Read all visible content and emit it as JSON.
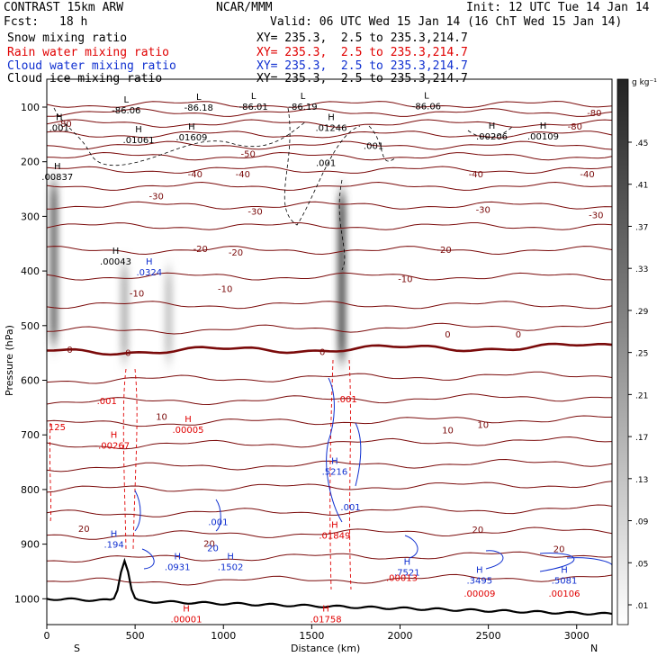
{
  "header": {
    "model": "CONTRAST 15km ARW",
    "org": "NCAR/MMM",
    "init": "Init: 12 UTC Tue 14 Jan 14",
    "fcst_label": "Fcst:",
    "fcst_value": "18 h",
    "valid": "Valid: 06 UTC Wed 15 Jan 14 (16 ChT Wed 15 Jan 14)",
    "fields": [
      {
        "name": "Snow mixing ratio",
        "xy": "XY= 235.3,  2.5 to 235.3,214.7",
        "color": "#000000"
      },
      {
        "name": "Rain water mixing ratio",
        "xy": "XY= 235.3,  2.5 to 235.3,214.7",
        "color": "#e00000"
      },
      {
        "name": "Cloud water mixing ratio",
        "xy": "XY= 235.3,  2.5 to 235.3,214.7",
        "color": "#1030d0"
      },
      {
        "name": "Cloud ice mixing ratio",
        "xy": "XY= 235.3,  2.5 to 235.3,214.7",
        "color": "#000000"
      }
    ]
  },
  "chart_data": {
    "type": "cross-section",
    "xlabel": "Distance (km)",
    "ylabel": "Pressure (hPa)",
    "x_range": [
      0,
      3200
    ],
    "y_range": [
      50,
      1030
    ],
    "x_ticks": [
      0,
      500,
      1000,
      1500,
      2000,
      2500,
      3000
    ],
    "y_ticks": [
      100,
      200,
      300,
      400,
      500,
      600,
      700,
      800,
      900,
      1000
    ],
    "x_end_labels": {
      "left": "S",
      "right": "N"
    },
    "colorbar": {
      "unit": "g kg⁻¹",
      "ticks": [
        ".01",
        ".05",
        ".09",
        ".13",
        ".17",
        ".21",
        ".25",
        ".29",
        ".33",
        ".37",
        ".41",
        ".45"
      ]
    },
    "temperature_contours": [
      {
        "label": "-80",
        "x_km": 3100,
        "p_hpa": 110
      },
      {
        "label": "-80",
        "x_km": 100,
        "p_hpa": 130
      },
      {
        "label": "-80",
        "x_km": 2990,
        "p_hpa": 135
      },
      {
        "label": "-50",
        "x_km": 1140,
        "p_hpa": 185
      },
      {
        "label": "-40",
        "x_km": 840,
        "p_hpa": 222
      },
      {
        "label": "-40",
        "x_km": 1110,
        "p_hpa": 222
      },
      {
        "label": "-40",
        "x_km": 2430,
        "p_hpa": 222
      },
      {
        "label": "-40",
        "x_km": 3060,
        "p_hpa": 222
      },
      {
        "label": "-30",
        "x_km": 620,
        "p_hpa": 262
      },
      {
        "label": "-30",
        "x_km": 1180,
        "p_hpa": 290
      },
      {
        "label": "-30",
        "x_km": 2470,
        "p_hpa": 287
      },
      {
        "label": "-30",
        "x_km": 3110,
        "p_hpa": 297
      },
      {
        "label": "-20",
        "x_km": 870,
        "p_hpa": 359
      },
      {
        "label": "-20",
        "x_km": 1070,
        "p_hpa": 365
      },
      {
        "label": "-20",
        "x_km": 2250,
        "p_hpa": 360
      },
      {
        "label": "-10",
        "x_km": 510,
        "p_hpa": 440
      },
      {
        "label": "-10",
        "x_km": 1010,
        "p_hpa": 432
      },
      {
        "label": "-10",
        "x_km": 2030,
        "p_hpa": 414
      },
      {
        "label": "0",
        "x_km": 130,
        "p_hpa": 543
      },
      {
        "label": "0",
        "x_km": 460,
        "p_hpa": 549
      },
      {
        "label": "0",
        "x_km": 1560,
        "p_hpa": 547
      },
      {
        "label": "0",
        "x_km": 2270,
        "p_hpa": 515
      },
      {
        "label": "0",
        "x_km": 2670,
        "p_hpa": 515
      },
      {
        "label": "10",
        "x_km": 650,
        "p_hpa": 666
      },
      {
        "label": "10",
        "x_km": 2270,
        "p_hpa": 691
      },
      {
        "label": "10",
        "x_km": 2470,
        "p_hpa": 681
      },
      {
        "label": "20",
        "x_km": 210,
        "p_hpa": 871
      },
      {
        "label": "20",
        "x_km": 920,
        "p_hpa": 898
      },
      {
        "label": "20",
        "x_km": 2440,
        "p_hpa": 873
      },
      {
        "label": "20",
        "x_km": 2900,
        "p_hpa": 908
      }
    ],
    "maxima_labels": [
      {
        "field": "cloud_ice",
        "h": "L",
        "value": "-86.06",
        "x_km": 450,
        "p_hpa": 108
      },
      {
        "field": "cloud_ice",
        "h": "L",
        "value": "-86.18",
        "x_km": 860,
        "p_hpa": 103
      },
      {
        "field": "cloud_ice",
        "h": "L",
        "value": "-86.01",
        "x_km": 1170,
        "p_hpa": 102
      },
      {
        "field": "cloud_ice",
        "h": "L",
        "value": "-86.19",
        "x_km": 1450,
        "p_hpa": 102
      },
      {
        "field": "cloud_ice",
        "h": "L",
        "value": "-86.06",
        "x_km": 2150,
        "p_hpa": 101
      },
      {
        "field": "cloud_ice",
        "h": "H",
        "value": ".001",
        "x_km": 70,
        "p_hpa": 140
      },
      {
        "field": "cloud_ice",
        "h": "H",
        "value": ".01061",
        "x_km": 520,
        "p_hpa": 163
      },
      {
        "field": "cloud_ice",
        "h": "H",
        "value": ".01609",
        "x_km": 820,
        "p_hpa": 158
      },
      {
        "field": "cloud_ice",
        "h": "H",
        "value": ".01246",
        "x_km": 1610,
        "p_hpa": 140
      },
      {
        "field": "cloud_ice",
        "h": "H",
        "value": ".00206",
        "x_km": 2520,
        "p_hpa": 156
      },
      {
        "field": "cloud_ice",
        "h": "H",
        "value": ".00109",
        "x_km": 2810,
        "p_hpa": 156
      },
      {
        "field": "cloud_ice",
        "h": "H",
        "value": ".00837",
        "x_km": 60,
        "p_hpa": 230
      },
      {
        "field": "cloud_ice",
        "h": "H",
        "value": ".00043",
        "x_km": 390,
        "p_hpa": 385
      },
      {
        "field": "cloud_ice",
        "h": "",
        "value": ".001",
        "x_km": 1850,
        "p_hpa": 173
      },
      {
        "field": "cloud_ice",
        "h": "",
        "value": ".001",
        "x_km": 1580,
        "p_hpa": 205
      },
      {
        "field": "cloud_water",
        "h": "H",
        "value": ".0324",
        "x_km": 580,
        "p_hpa": 405
      },
      {
        "field": "rain_water",
        "h": "H",
        "value": ".00267",
        "x_km": 380,
        "p_hpa": 722
      },
      {
        "field": "rain_water",
        "h": "H",
        "value": ".00005",
        "x_km": 800,
        "p_hpa": 693
      },
      {
        "field": "rain_water",
        "h": "",
        "value": ".001",
        "x_km": 340,
        "p_hpa": 640
      },
      {
        "field": "rain_water",
        "h": "",
        "value": ".125",
        "x_km": 50,
        "p_hpa": 688
      },
      {
        "field": "rain_water",
        "h": "",
        "value": ".001",
        "x_km": 1700,
        "p_hpa": 637
      },
      {
        "field": "cloud_water",
        "h": "H",
        "value": ".5216",
        "x_km": 1630,
        "p_hpa": 770
      },
      {
        "field": "cloud_water",
        "h": "",
        "value": ".001",
        "x_km": 1720,
        "p_hpa": 835
      },
      {
        "field": "cloud_water",
        "h": "",
        "value": ".001",
        "x_km": 970,
        "p_hpa": 862
      },
      {
        "field": "rain_water",
        "h": "H",
        "value": ".01849",
        "x_km": 1630,
        "p_hpa": 887
      },
      {
        "field": "cloud_water",
        "h": "H",
        "value": ".194",
        "x_km": 380,
        "p_hpa": 903
      },
      {
        "field": "cloud_water",
        "h": "H",
        "value": ".0931",
        "x_km": 740,
        "p_hpa": 944
      },
      {
        "field": "cloud_water",
        "h": "H",
        "value": ".1502",
        "x_km": 1040,
        "p_hpa": 944
      },
      {
        "field": "cloud_water",
        "h": "H",
        "value": ".7521",
        "x_km": 2040,
        "p_hpa": 954
      },
      {
        "field": "rain_water",
        "h": "",
        "value": ".00013",
        "x_km": 2010,
        "p_hpa": 964
      },
      {
        "field": "cloud_water",
        "h": "H",
        "value": ".3495",
        "x_km": 2450,
        "p_hpa": 969
      },
      {
        "field": "rain_water",
        "h": "",
        "value": ".00009",
        "x_km": 2450,
        "p_hpa": 993
      },
      {
        "field": "cloud_water",
        "h": "H",
        "value": ".5081",
        "x_km": 2930,
        "p_hpa": 969
      },
      {
        "field": "rain_water",
        "h": "",
        "value": ".00106",
        "x_km": 2930,
        "p_hpa": 993
      },
      {
        "field": "rain_water",
        "h": "H",
        "value": ".00001",
        "x_km": 790,
        "p_hpa": 1040
      },
      {
        "field": "rain_water",
        "h": "H",
        "value": ".01758",
        "x_km": 1580,
        "p_hpa": 1040
      },
      {
        "field": "cloud_water",
        "h": "",
        "value": "20",
        "x_km": 940,
        "p_hpa": 910
      }
    ],
    "snow_shading": [
      {
        "x_km": 40,
        "p_top": 240,
        "p_bottom": 530,
        "max": 0.35
      },
      {
        "x_km": 440,
        "p_top": 390,
        "p_bottom": 560,
        "max": 0.18
      },
      {
        "x_km": 690,
        "p_top": 400,
        "p_bottom": 560,
        "max": 0.14
      },
      {
        "x_km": 1670,
        "p_top": 260,
        "p_bottom": 560,
        "max": 0.42
      }
    ]
  }
}
